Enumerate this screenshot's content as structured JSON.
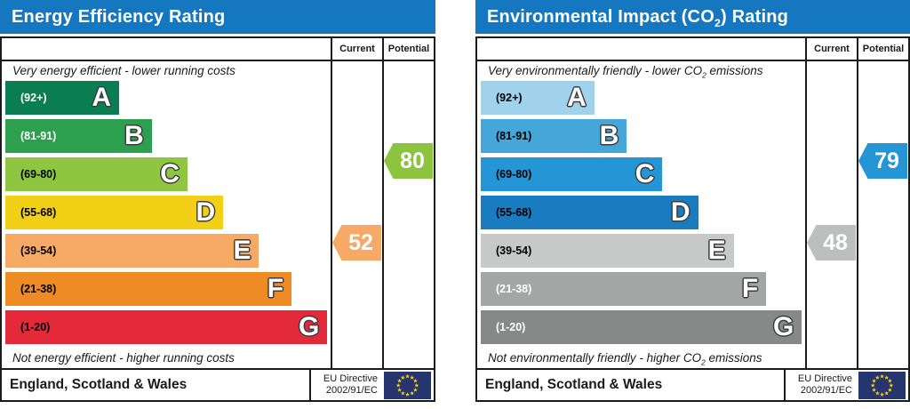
{
  "colors": {
    "title_bar": "#1477c0",
    "eu_flag_field": "#26356d",
    "eu_flag_stars": "#f7d116",
    "border": "#1a1a1a"
  },
  "left_panel": {
    "title_parts": {
      "pre": "Energy Efficiency Rating",
      "sub": "",
      "post": ""
    },
    "header": {
      "current": "Current",
      "potential": "Potential"
    },
    "top_caption": {
      "pre": "Very energy efficient - lower running costs",
      "sub": "",
      "post": ""
    },
    "bottom_caption": {
      "pre": "Not energy efficient - higher running costs",
      "sub": "",
      "post": ""
    },
    "bands": [
      {
        "range": "(92+)",
        "letter": "A",
        "color": "#0b7d52",
        "text_color": "#ffffff",
        "width_pct": 35
      },
      {
        "range": "(81-91)",
        "letter": "B",
        "color": "#2ca04e",
        "text_color": "#ffffff",
        "width_pct": 45
      },
      {
        "range": "(69-80)",
        "letter": "C",
        "color": "#8ec641",
        "text_color": "#000000",
        "width_pct": 56
      },
      {
        "range": "(55-68)",
        "letter": "D",
        "color": "#f2d015",
        "text_color": "#000000",
        "width_pct": 67
      },
      {
        "range": "(39-54)",
        "letter": "E",
        "color": "#f7aa66",
        "text_color": "#000000",
        "width_pct": 78
      },
      {
        "range": "(21-38)",
        "letter": "F",
        "color": "#ee8b24",
        "text_color": "#000000",
        "width_pct": 88
      },
      {
        "range": "(1-20)",
        "letter": "G",
        "color": "#e4293a",
        "text_color": "#000000",
        "width_pct": 99
      }
    ],
    "current": {
      "value": "52",
      "color": "#f7aa66"
    },
    "potential": {
      "value": "80",
      "color": "#8cc43f"
    },
    "footer": {
      "region": "England, Scotland & Wales",
      "directive_line1": "EU Directive",
      "directive_line2": "2002/91/EC"
    }
  },
  "right_panel": {
    "title_parts": {
      "pre": "Environmental Impact (CO",
      "sub": "2",
      "post": ") Rating"
    },
    "header": {
      "current": "Current",
      "potential": "Potential"
    },
    "top_caption": {
      "pre": "Very environmentally friendly - lower CO",
      "sub": "2",
      "post": " emissions"
    },
    "bottom_caption": {
      "pre": "Not environmentally friendly - higher CO",
      "sub": "2",
      "post": " emissions"
    },
    "bands": [
      {
        "range": "(92+)",
        "letter": "A",
        "color": "#a0d2eb",
        "text_color": "#000000",
        "width_pct": 35
      },
      {
        "range": "(81-91)",
        "letter": "B",
        "color": "#44a6d9",
        "text_color": "#000000",
        "width_pct": 45
      },
      {
        "range": "(69-80)",
        "letter": "C",
        "color": "#2496d5",
        "text_color": "#000000",
        "width_pct": 56
      },
      {
        "range": "(55-68)",
        "letter": "D",
        "color": "#1a7cc0",
        "text_color": "#000000",
        "width_pct": 67
      },
      {
        "range": "(39-54)",
        "letter": "E",
        "color": "#c7c8c8",
        "text_color": "#000000",
        "width_pct": 78
      },
      {
        "range": "(21-38)",
        "letter": "F",
        "color": "#a4a5a5",
        "text_color": "#ffffff",
        "width_pct": 88
      },
      {
        "range": "(1-20)",
        "letter": "G",
        "color": "#878888",
        "text_color": "#ffffff",
        "width_pct": 99
      }
    ],
    "current": {
      "value": "48",
      "color": "#bdbebe"
    },
    "potential": {
      "value": "79",
      "color": "#2496d5"
    },
    "footer": {
      "region": "England, Scotland & Wales",
      "directive_line1": "EU Directive",
      "directive_line2": "2002/91/EC"
    }
  },
  "chart_data": [
    {
      "type": "bar",
      "title": "Energy Efficiency Rating",
      "categories": [
        "A (92+)",
        "B (81-91)",
        "C (69-80)",
        "D (55-68)",
        "E (39-54)",
        "F (21-38)",
        "G (1-20)"
      ],
      "band_widths_pct": [
        35,
        45,
        56,
        67,
        78,
        88,
        99
      ],
      "current": 52,
      "current_band": "E",
      "potential": 80,
      "potential_band": "C",
      "top_note": "Very energy efficient - lower running costs",
      "bottom_note": "Not energy efficient - higher running costs",
      "footer": "England, Scotland & Wales",
      "directive": "EU Directive 2002/91/EC"
    },
    {
      "type": "bar",
      "title": "Environmental Impact (CO2) Rating",
      "categories": [
        "A (92+)",
        "B (81-91)",
        "C (69-80)",
        "D (55-68)",
        "E (39-54)",
        "F (21-38)",
        "G (1-20)"
      ],
      "band_widths_pct": [
        35,
        45,
        56,
        67,
        78,
        88,
        99
      ],
      "current": 48,
      "current_band": "E",
      "potential": 79,
      "potential_band": "C",
      "top_note": "Very environmentally friendly - lower CO2 emissions",
      "bottom_note": "Not environmentally friendly - higher CO2 emissions",
      "footer": "England, Scotland & Wales",
      "directive": "EU Directive 2002/91/EC"
    }
  ]
}
